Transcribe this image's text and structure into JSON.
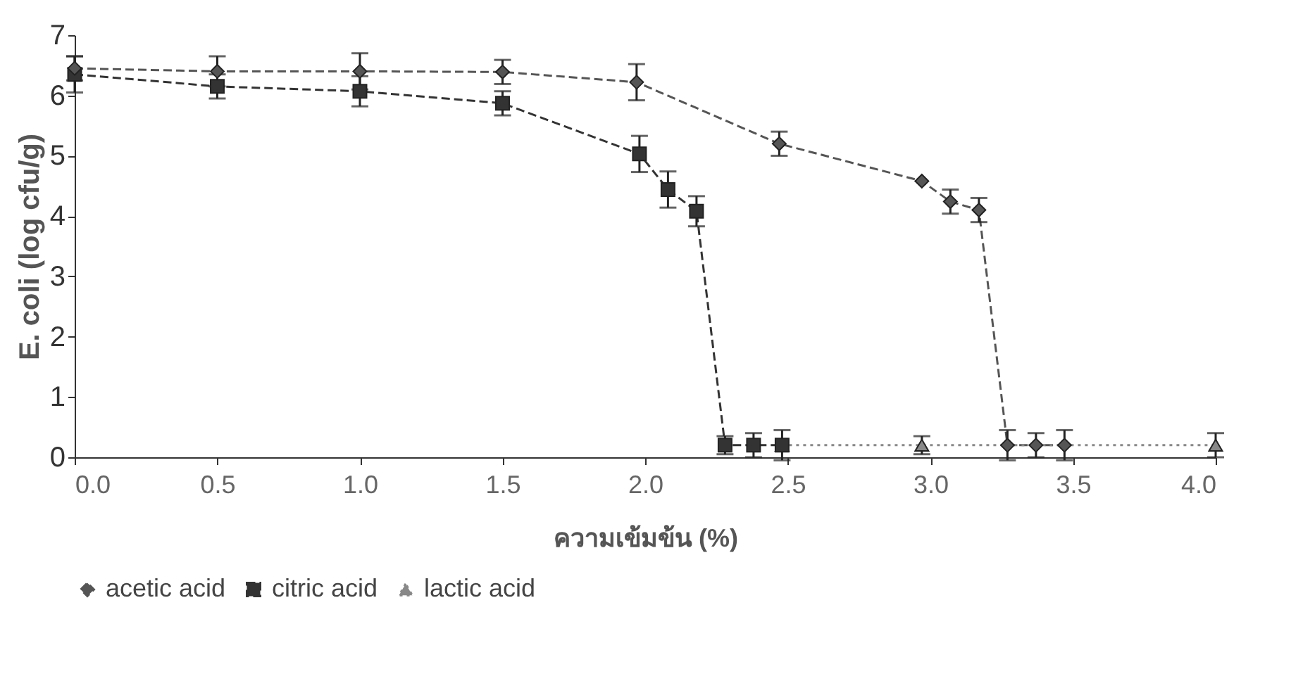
{
  "chart_data": {
    "type": "line",
    "xlabel": "ความเข้มข้น (%)",
    "ylabel": "E. coli (log cfu/g)",
    "xlim": [
      0,
      4
    ],
    "ylim": [
      0,
      7
    ],
    "xticks": [
      {
        "value": 0,
        "label": "0.0"
      },
      0.5,
      {
        "value": 1,
        "label": "1.0"
      },
      1.5,
      {
        "value": 2,
        "label": "2.0"
      },
      2.5,
      {
        "value": 3,
        "label": "3.0"
      },
      3.5,
      {
        "value": 4,
        "label": "4.0"
      }
    ],
    "yticks": [
      0,
      1,
      2,
      3,
      4,
      5,
      6,
      7
    ],
    "grid": false,
    "legend": "bottom",
    "series": [
      {
        "name": "acetic acid",
        "color": "#555555",
        "marker": "diamond",
        "line_style": "dashed",
        "x": [
          0,
          0.5,
          1.0,
          1.5,
          1.97,
          2.47,
          2.97,
          3.07,
          3.17,
          3.27,
          3.37,
          3.47
        ],
        "values": [
          6.45,
          6.4,
          6.4,
          6.39,
          6.22,
          5.2,
          4.58,
          4.24,
          4.1,
          0.2,
          0.2,
          0.2
        ],
        "errors": [
          0.2,
          0.25,
          0.3,
          0.2,
          0.3,
          0.2,
          null,
          0.2,
          0.2,
          0.25,
          0.2,
          0.25
        ]
      },
      {
        "name": "citric acid",
        "color": "#333333",
        "marker": "square",
        "line_style": "dashed",
        "x": [
          0,
          0.5,
          1.0,
          1.5,
          1.98,
          2.08,
          2.18,
          2.28,
          2.38,
          2.48
        ],
        "values": [
          6.35,
          6.15,
          6.07,
          5.87,
          5.03,
          4.44,
          4.08,
          0.2,
          0.2,
          0.2
        ],
        "errors": [
          0.3,
          0.2,
          0.25,
          0.2,
          0.3,
          0.3,
          0.25,
          0.15,
          0.2,
          0.25
        ]
      },
      {
        "name": "lactic acid",
        "color": "#888888",
        "marker": "triangle",
        "line_style": "dotted",
        "x": [
          2.48,
          2.97,
          4.0
        ],
        "values": [
          0.2,
          0.2,
          0.2
        ],
        "errors": [
          null,
          0.15,
          0.2
        ]
      }
    ]
  }
}
